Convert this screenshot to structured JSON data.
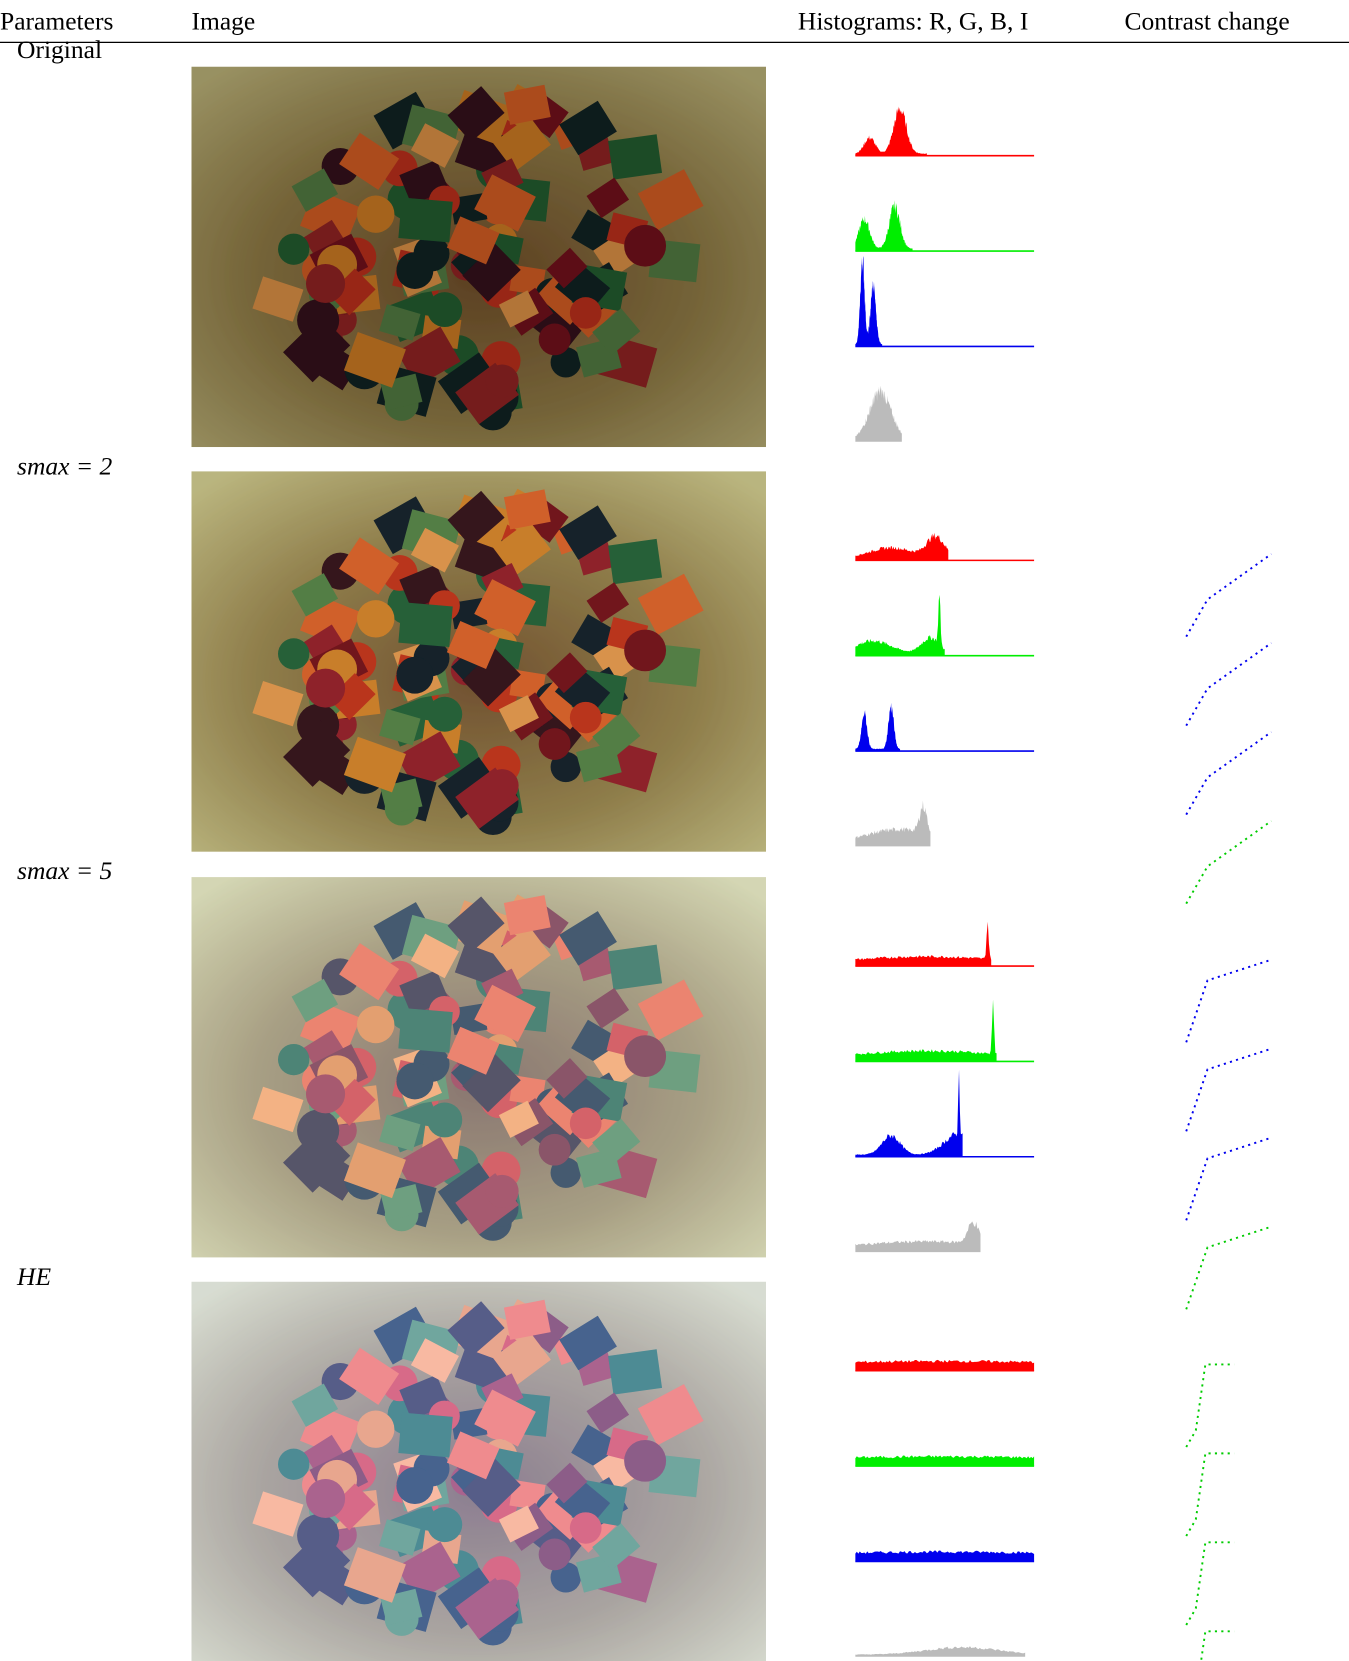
{
  "header": {
    "columns": [
      "Parameters",
      "Image",
      "Histograms: R, G, B, I",
      "Contrast change"
    ]
  },
  "rows": [
    {
      "label": "Original"
    },
    {
      "label": "smax = 2"
    },
    {
      "label": "smax = 5"
    },
    {
      "label": "HE"
    }
  ]
}
